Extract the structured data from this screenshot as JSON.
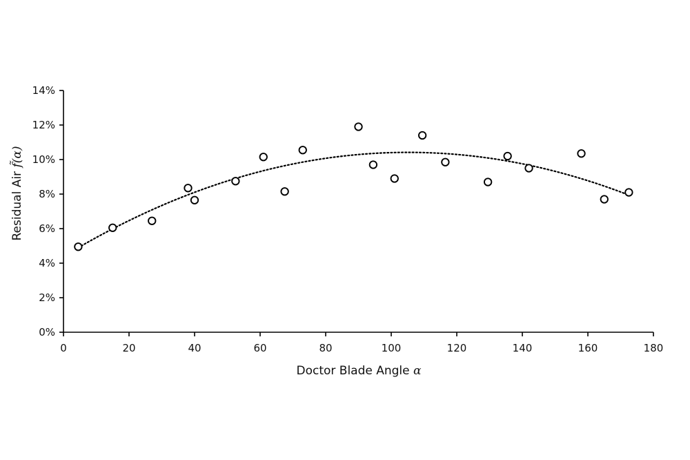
{
  "chart_data": {
    "type": "scatter",
    "xlabel": "Doctor Blade Angle",
    "xlabel_symbol": "α",
    "ylabel": "Residual Air",
    "ylabel_symbol": "f̃(α)",
    "xlim": [
      0,
      180
    ],
    "ylim": [
      0,
      14
    ],
    "x_ticks": [
      0,
      20,
      40,
      60,
      80,
      100,
      120,
      140,
      160,
      180
    ],
    "y_ticks": [
      0,
      2,
      4,
      6,
      8,
      10,
      12,
      14
    ],
    "y_tick_suffix": "%",
    "grid": false,
    "legend": "none",
    "series": [
      {
        "marker": "open-circle",
        "points": [
          {
            "x": 4.5,
            "y": 4.95
          },
          {
            "x": 15,
            "y": 6.05
          },
          {
            "x": 27,
            "y": 6.45
          },
          {
            "x": 38,
            "y": 8.35
          },
          {
            "x": 40,
            "y": 7.65
          },
          {
            "x": 52.5,
            "y": 8.75
          },
          {
            "x": 61,
            "y": 10.15
          },
          {
            "x": 67.5,
            "y": 8.15
          },
          {
            "x": 73,
            "y": 10.55
          },
          {
            "x": 90,
            "y": 11.9
          },
          {
            "x": 94.5,
            "y": 9.7
          },
          {
            "x": 101,
            "y": 8.9
          },
          {
            "x": 109.5,
            "y": 11.4
          },
          {
            "x": 116.5,
            "y": 9.85
          },
          {
            "x": 129.5,
            "y": 8.7
          },
          {
            "x": 135.5,
            "y": 10.2
          },
          {
            "x": 142,
            "y": 9.5
          },
          {
            "x": 158,
            "y": 10.35
          },
          {
            "x": 165,
            "y": 7.7
          },
          {
            "x": 172.5,
            "y": 8.1
          }
        ]
      }
    ],
    "trendline": {
      "type": "polynomial",
      "style": "dotted",
      "x_range": [
        4.5,
        172.5
      ],
      "quadratic_coefficients": {
        "a": -0.000545,
        "b": 0.1146,
        "c": 4.3914
      }
    },
    "colors": {
      "axis": "#000000",
      "marker_stroke": "#000000",
      "trendline": "#000000"
    }
  }
}
